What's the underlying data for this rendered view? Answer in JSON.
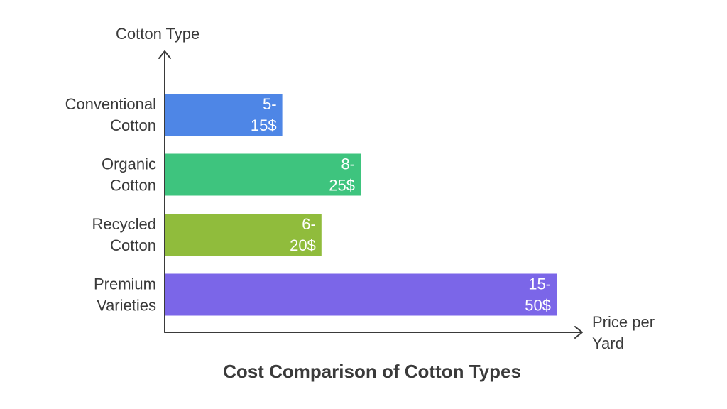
{
  "chart_data": {
    "type": "bar",
    "orientation": "horizontal",
    "title": "Cost Comparison of Cotton Types",
    "ylabel": "Cotton Type",
    "xlabel": "Price per Yard",
    "categories": [
      [
        "Conventional",
        "Cotton"
      ],
      [
        "Organic",
        "Cotton"
      ],
      [
        "Recycled",
        "Cotton"
      ],
      [
        "Premium",
        "Varieties"
      ]
    ],
    "values": [
      15,
      25,
      20,
      50
    ],
    "data_labels": [
      [
        "5-",
        "15$"
      ],
      [
        "8-",
        "25$"
      ],
      [
        "6-",
        "20$"
      ],
      [
        "15-",
        "50$"
      ]
    ],
    "xlim": [
      0,
      55
    ],
    "grid": false,
    "legend": "none",
    "colors": [
      "#4e86e6",
      "#3ec47e",
      "#90bc3c",
      "#7b66e8"
    ]
  }
}
